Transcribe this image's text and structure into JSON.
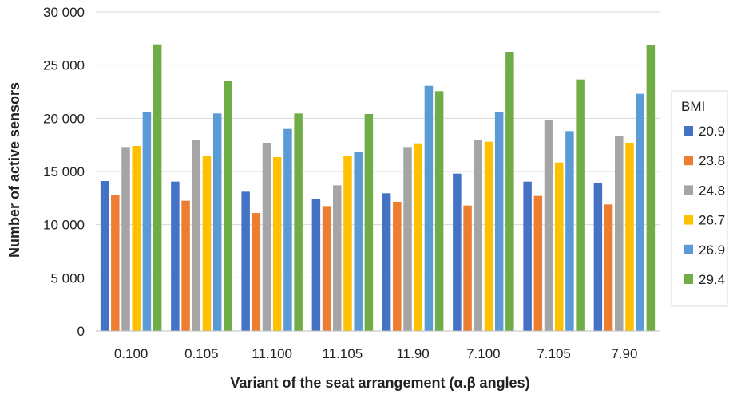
{
  "chart_data": {
    "type": "bar",
    "title": "",
    "xlabel": "Variant of the seat arrangement (α.β angles)",
    "ylabel": "Number of active sensors",
    "ylim": [
      0,
      30000
    ],
    "yticks": [
      0,
      5000,
      10000,
      15000,
      20000,
      25000,
      30000
    ],
    "ytick_labels": [
      "0",
      "5 000",
      "10 000",
      "15 000",
      "20 000",
      "25 000",
      "30 000"
    ],
    "grid": true,
    "legend_position": "right",
    "legend_title": "BMI",
    "categories": [
      "0.100",
      "0.105",
      "11.100",
      "11.105",
      "11.90",
      "7.100",
      "7.105",
      "7.90"
    ],
    "series": [
      {
        "name": "20.9",
        "color": "#4472C4",
        "values": [
          14100,
          14050,
          13100,
          12450,
          12950,
          14800,
          14050,
          13900
        ]
      },
      {
        "name": "23.8",
        "color": "#ED7D31",
        "values": [
          12800,
          12250,
          11100,
          11750,
          12150,
          11800,
          12700,
          11900
        ]
      },
      {
        "name": "24.8",
        "color": "#A5A5A5",
        "values": [
          17300,
          17950,
          17700,
          13700,
          17300,
          17950,
          19850,
          18300
        ]
      },
      {
        "name": "26.7",
        "color": "#FFC000",
        "values": [
          17400,
          16500,
          16350,
          16450,
          17650,
          17800,
          15850,
          17700
        ]
      },
      {
        "name": "26.9",
        "color": "#5B9BD5",
        "values": [
          20550,
          20450,
          19000,
          16800,
          23050,
          20550,
          18800,
          22300
        ]
      },
      {
        "name": "29.4",
        "color": "#70AD47",
        "values": [
          26950,
          23500,
          20450,
          20400,
          22550,
          26250,
          23650,
          26850
        ]
      }
    ]
  }
}
